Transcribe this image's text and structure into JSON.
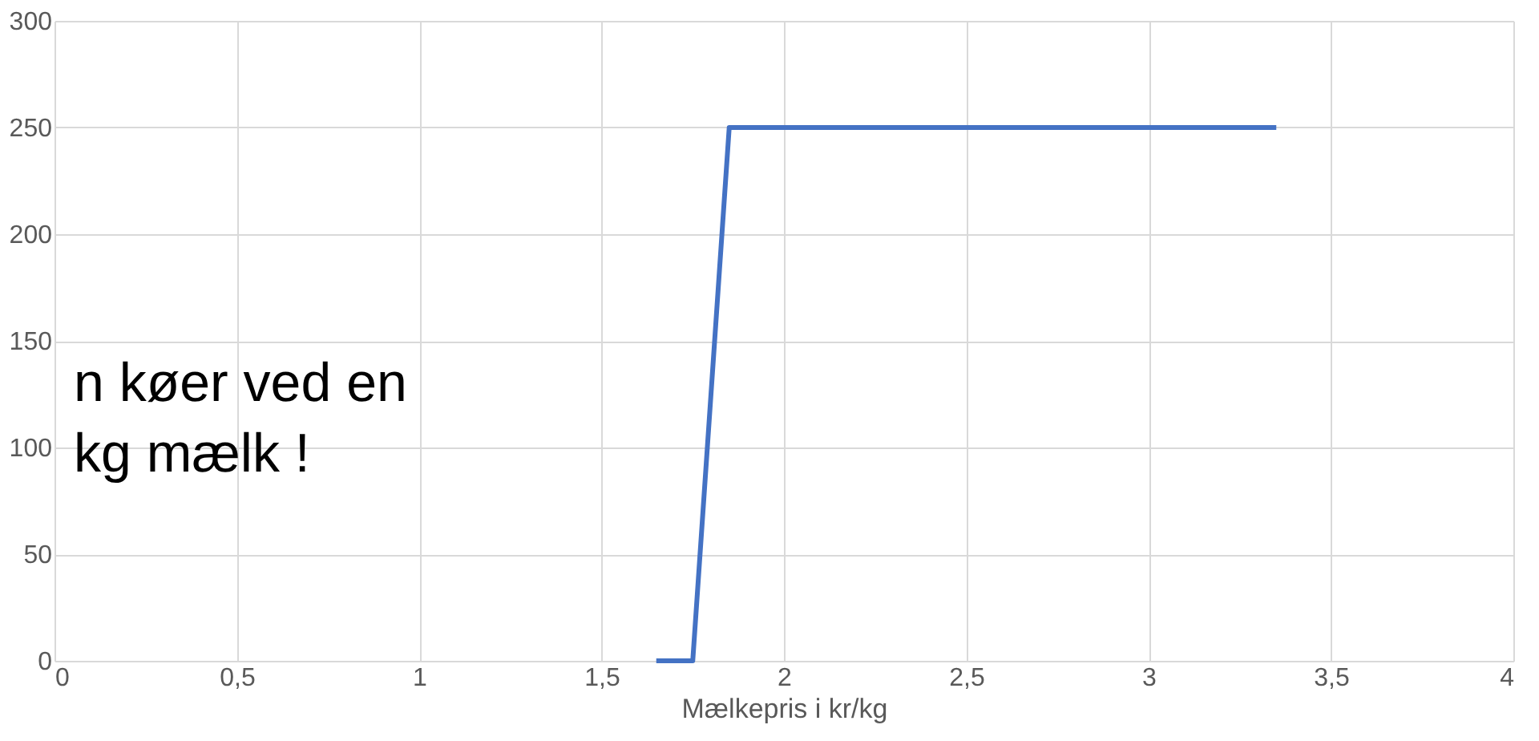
{
  "chart_data": {
    "type": "line",
    "xlabel": "Mælkepris i kr/kg",
    "x": [
      1.65,
      1.75,
      1.85,
      3.35
    ],
    "series": [
      {
        "color": "#4472c4",
        "values": [
          0,
          0,
          250,
          250
        ]
      }
    ],
    "xlim": [
      0,
      4
    ],
    "xticks": [
      0,
      {
        "value": 0.5,
        "label": "0,5"
      },
      1,
      {
        "value": 1.5,
        "label": "1,5"
      },
      2,
      {
        "value": 2.5,
        "label": "2,5"
      },
      3,
      {
        "value": 3.5,
        "label": "3,5"
      },
      4
    ],
    "ylim": [
      0,
      300
    ],
    "yticks": [
      0,
      50,
      100,
      150,
      200,
      250,
      300
    ],
    "grid": true,
    "marker": "none",
    "line_style": "solid",
    "annotations": [
      "n køer ved en",
      "kg mælk !"
    ]
  }
}
